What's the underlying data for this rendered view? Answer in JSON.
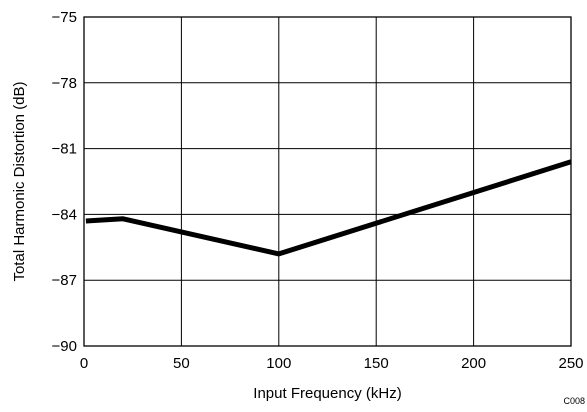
{
  "chart_data": {
    "type": "line",
    "xlabel": "Input Frequency (kHz)",
    "ylabel": "Total Harmonic Distortion (dB)",
    "xlim": [
      0,
      250
    ],
    "ylim": [
      -90,
      -75
    ],
    "x_ticks": [
      "0",
      "50",
      "100",
      "150",
      "200",
      "250"
    ],
    "y_ticks": [
      "−75",
      "−78",
      "−81",
      "−84",
      "−87",
      "−90"
    ],
    "x_tick_values": [
      0,
      50,
      100,
      150,
      200,
      250
    ],
    "y_tick_values": [
      -75,
      -78,
      -81,
      -84,
      -87,
      -90
    ],
    "grid": true,
    "series": [
      {
        "x": [
          1,
          20,
          100,
          250
        ],
        "y": [
          -84.3,
          -84.2,
          -85.8,
          -81.6
        ]
      }
    ],
    "annotation": "C008",
    "colors": {
      "line": "#000000",
      "grid": "#000000",
      "background": "#ffffff"
    }
  }
}
